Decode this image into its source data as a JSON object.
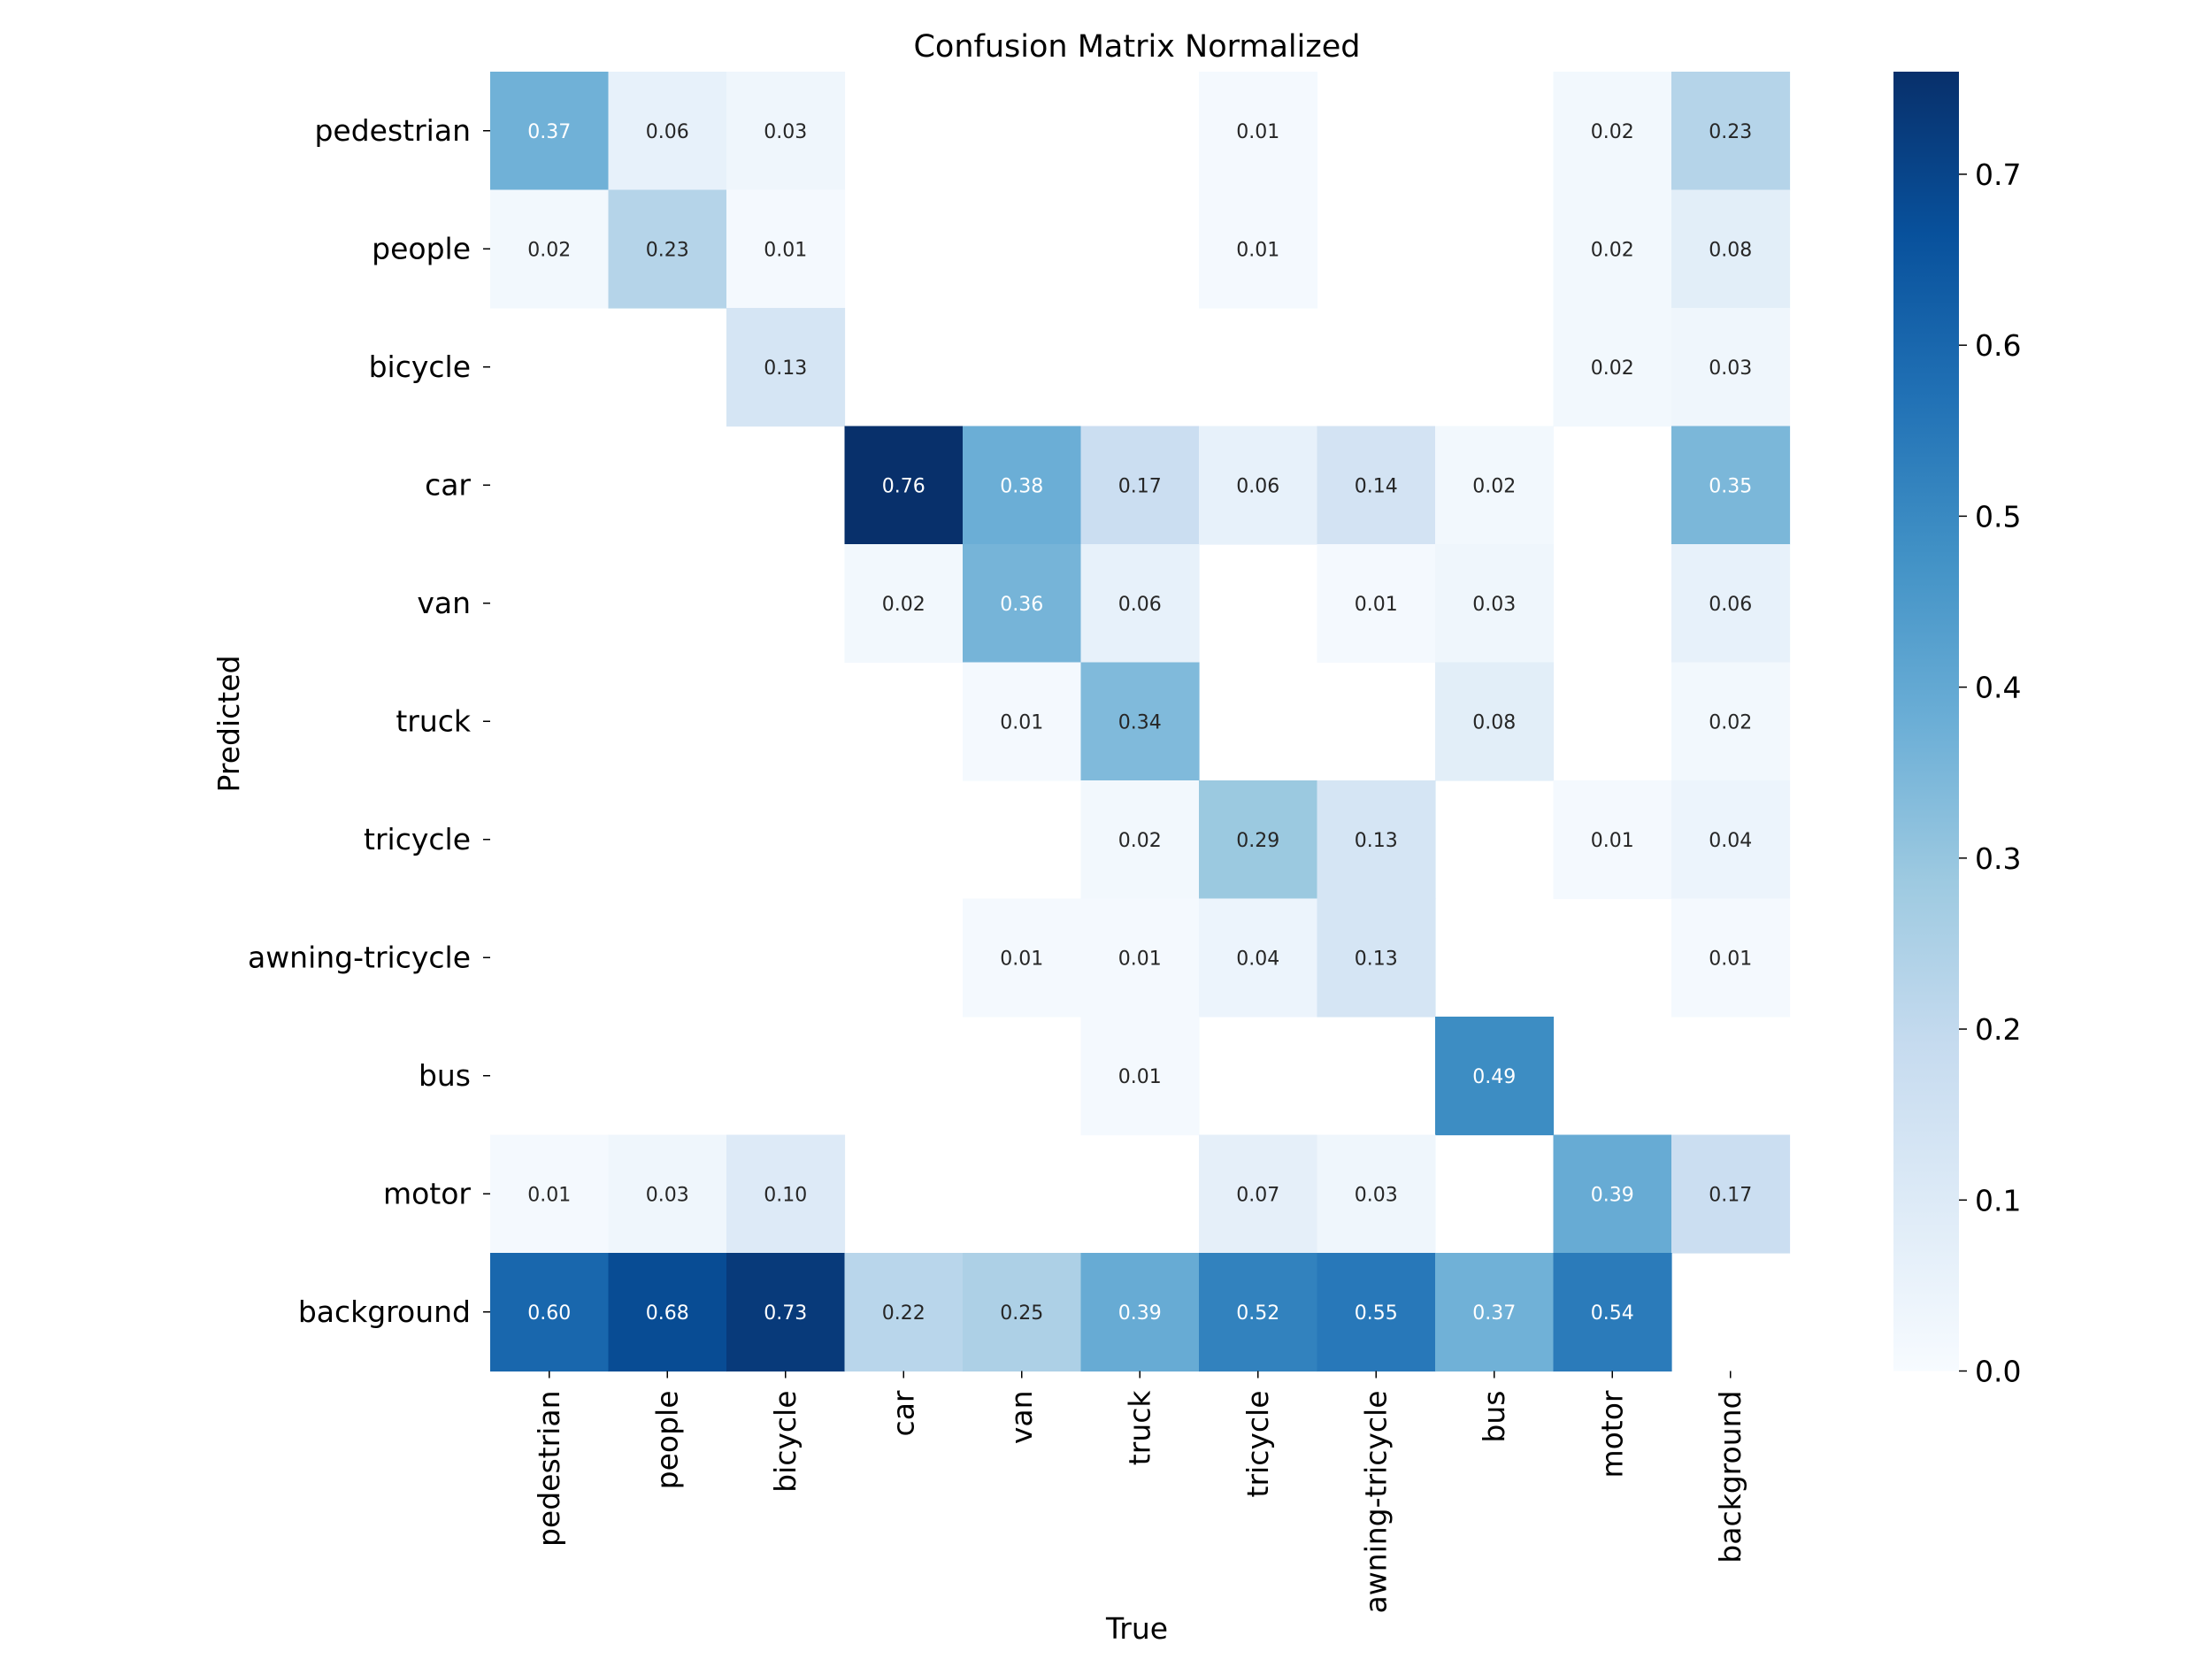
{
  "chart_data": {
    "type": "heatmap",
    "title": "Confusion Matrix Normalized",
    "xlabel": "True",
    "ylabel": "Predicted",
    "x_categories": [
      "pedestrian",
      "people",
      "bicycle",
      "car",
      "van",
      "truck",
      "tricycle",
      "awning-tricycle",
      "bus",
      "motor",
      "background"
    ],
    "y_categories": [
      "pedestrian",
      "people",
      "bicycle",
      "car",
      "van",
      "truck",
      "tricycle",
      "awning-tricycle",
      "bus",
      "motor",
      "background"
    ],
    "values": [
      [
        0.37,
        0.06,
        0.03,
        null,
        null,
        null,
        0.01,
        null,
        null,
        0.02,
        0.23
      ],
      [
        0.02,
        0.23,
        0.01,
        null,
        null,
        null,
        0.01,
        null,
        null,
        0.02,
        0.08
      ],
      [
        null,
        null,
        0.13,
        null,
        null,
        null,
        null,
        null,
        null,
        0.02,
        0.03
      ],
      [
        null,
        null,
        null,
        0.76,
        0.38,
        0.17,
        0.06,
        0.14,
        0.02,
        null,
        0.35
      ],
      [
        null,
        null,
        null,
        0.02,
        0.36,
        0.06,
        null,
        0.01,
        0.03,
        null,
        0.06
      ],
      [
        null,
        null,
        null,
        null,
        0.01,
        0.34,
        null,
        null,
        0.08,
        null,
        0.02
      ],
      [
        null,
        null,
        null,
        null,
        null,
        0.02,
        0.29,
        0.13,
        null,
        0.01,
        0.04
      ],
      [
        null,
        null,
        null,
        null,
        0.01,
        0.01,
        0.04,
        0.13,
        null,
        null,
        0.01
      ],
      [
        null,
        null,
        null,
        null,
        null,
        0.01,
        null,
        null,
        0.49,
        null,
        null
      ],
      [
        0.01,
        0.03,
        0.1,
        null,
        null,
        null,
        0.07,
        0.03,
        null,
        0.39,
        0.17
      ],
      [
        0.6,
        0.68,
        0.73,
        0.22,
        0.25,
        0.39,
        0.52,
        0.55,
        0.37,
        0.54,
        null
      ]
    ],
    "value_format": "0.00",
    "colormap": "Blues",
    "colorbar": {
      "range": [
        0.0,
        0.76
      ],
      "ticks": [
        0.0,
        0.1,
        0.2,
        0.3,
        0.4,
        0.5,
        0.6,
        0.7
      ],
      "tick_labels": [
        "0.0",
        "0.1",
        "0.2",
        "0.3",
        "0.4",
        "0.5",
        "0.6",
        "0.7"
      ]
    }
  },
  "colors": {
    "colormap_stops": [
      "#f7fbff",
      "#deebf7",
      "#c6dbef",
      "#9ecae1",
      "#6baed6",
      "#4292c6",
      "#2171b5",
      "#08519c",
      "#08306b"
    ],
    "text_dark": "#262626",
    "text_light": "#ffffff"
  }
}
